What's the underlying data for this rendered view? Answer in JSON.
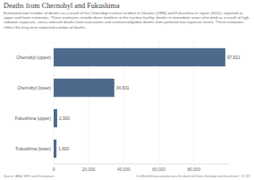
{
  "chart_data": {
    "type": "bar",
    "orientation": "horizontal",
    "title": "Deaths from Chernobyl and Fukushima",
    "subtitle": "Estimated total number of deaths as a result of the Chernobyl nuclear incident in Ukraine (1986) and Fukushima in Japan (2011), reported as upper and lower estimates. These estimates include direct fatalities at the nuclear facility; deaths in immediate areas who died as a result of high radiation exposure; stress-induced deaths from evacuation and continental/global deaths from potential low exposure levels. These estimates reflect the long-term expected number of deaths.",
    "categories": [
      "Chernobyl (upper)",
      "Chernobyl (lower)",
      "Fukushima (upper)",
      "Fukushima (lower)"
    ],
    "values": [
      97921,
      34601,
      2000,
      1600
    ],
    "value_labels": [
      "97,921",
      "34,601",
      "2,000",
      "1,600"
    ],
    "data_labels": true,
    "color": "#4d6a8c",
    "xlim": [
      0,
      100000
    ],
    "xticks": [
      0,
      {
        "value": 20000,
        "label": "20,000"
      },
      {
        "value": 40000,
        "label": "40,000"
      },
      {
        "value": 60000,
        "label": "60,000"
      },
      {
        "value": 80000,
        "label": "80,000"
      }
    ],
    "grid": true,
    "annotations": [
      "Source: IAEA, WHO and Greenpeace",
      "OurWorldInData.org/what-was-the-death-toll-from-chernobyl-and-fukushima/ • CC BY"
    ]
  }
}
